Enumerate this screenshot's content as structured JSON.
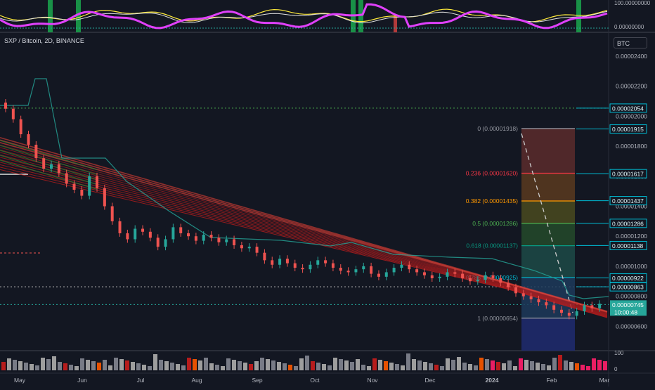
{
  "symbol": "SXP / Bitcoin, 2D, BINANCE",
  "currency": "BTC",
  "oscillator_axis": {
    "top": "100.00000000",
    "bottom": "0.00000000"
  },
  "volume_axis": {
    "top": "100",
    "bottom": "0"
  },
  "colors": {
    "background": "#131722",
    "up": "#26a69a",
    "down": "#ef5350",
    "ribbon": "#d32f2f",
    "teal": "#26c6da",
    "magenta": "#e040fb"
  },
  "chart_data": {
    "type": "candlestick",
    "y_axis_ticks": [
      "0.00002400",
      "0.00002200",
      "0.00002000",
      "0.00001800",
      "0.00001600",
      "0.00001400",
      "0.00001200",
      "0.00001000",
      "0.00000800",
      "0.00000600"
    ],
    "y_tick_values": [
      2.4e-05,
      2.2e-05,
      2e-05,
      1.8e-05,
      1.6e-05,
      1.4e-05,
      1.2e-05,
      1e-05,
      8e-06,
      6e-06
    ],
    "x_axis_labels": [
      "May",
      "Jun",
      "Jul",
      "Aug",
      "Sep",
      "Oct",
      "Nov",
      "Dec",
      "2024",
      "Feb",
      "Mar"
    ],
    "price_tags": [
      {
        "label": "0.00002054",
        "value": 2.054e-05,
        "style": "outline"
      },
      {
        "label": "0.00001915",
        "value": 1.915e-05,
        "style": "outline"
      },
      {
        "label": "0.00001617",
        "value": 1.617e-05,
        "style": "outline"
      },
      {
        "label": "0.00001437",
        "value": 1.437e-05,
        "style": "outline"
      },
      {
        "label": "0.00001286",
        "value": 1.286e-05,
        "style": "outline"
      },
      {
        "label": "0.00001138",
        "value": 1.138e-05,
        "style": "outline"
      },
      {
        "label": "0.00000922",
        "value": 9.22e-06,
        "style": "outline"
      },
      {
        "label": "0.00000863",
        "value": 8.63e-06,
        "style": "outline"
      }
    ],
    "last_price": {
      "label": "0.00000745",
      "countdown": "10:00:48",
      "value": 7.45e-06
    },
    "fibonacci": [
      {
        "ratio": "0",
        "label": "0 (0.00001918)",
        "value": 1.918e-05,
        "color": "#9598a1"
      },
      {
        "ratio": "0.236",
        "label": "0.236 (0.00001620)",
        "value": 1.62e-05,
        "color": "#f23645"
      },
      {
        "ratio": "0.382",
        "label": "0.382 (0.00001435)",
        "value": 1.435e-05,
        "color": "#ff9800"
      },
      {
        "ratio": "0.5",
        "label": "0.5 (0.00001286)",
        "value": 1.286e-05,
        "color": "#4caf50"
      },
      {
        "ratio": "0.618",
        "label": "0.618 (0.00001137)",
        "value": 1.137e-05,
        "color": "#089981"
      },
      {
        "ratio": "0.786",
        "label": "0.786 (0.00000925)",
        "value": 9.25e-06,
        "color": "#00bcd4"
      },
      {
        "ratio": "1",
        "label": "1 (0.00000654)",
        "value": 6.54e-06,
        "color": "#9598a1"
      }
    ],
    "candles": [
      2.05e-05,
      1.98e-05,
      1.88e-05,
      1.81e-05,
      1.72e-05,
      1.65e-05,
      1.68e-05,
      1.62e-05,
      1.55e-05,
      1.51e-05,
      1.47e-05,
      1.6e-05,
      1.52e-05,
      1.4e-05,
      1.3e-05,
      1.22e-05,
      1.18e-05,
      1.25e-05,
      1.23e-05,
      1.19e-05,
      1.13e-05,
      1.18e-05,
      1.26e-05,
      1.22e-05,
      1.2e-05,
      1.17e-05,
      1.21e-05,
      1.19e-05,
      1.16e-05,
      1.18e-05,
      1.14e-05,
      1.12e-05,
      1.13e-05,
      1.09e-05,
      1.04e-05,
      1.01e-05,
      1.05e-05,
      1.02e-05,
      9.9e-06,
      9.8e-06,
      1.01e-05,
      1.04e-05,
      1.02e-05,
      9.9e-06,
      9.7e-06,
      9.6e-06,
      9.8e-06,
      1e-05,
      9.5e-06,
      9.3e-06,
      9.6e-06,
      9.9e-06,
      1.01e-05,
      9.8e-06,
      9.6e-06,
      9.4e-06,
      9.2e-06,
      9.3e-06,
      9.6e-06,
      9.5e-06,
      9.2e-06,
      9e-06,
      9.1e-06,
      9.4e-06,
      9.2e-06,
      8.9e-06,
      8.6e-06,
      8.2e-06,
      8e-06,
      7.8e-06,
      7.6e-06,
      7.4e-06,
      7.1e-06,
      6.9e-06,
      6.7e-06,
      7e-06,
      7.4e-06,
      7.2e-06,
      7.5e-06
    ]
  }
}
